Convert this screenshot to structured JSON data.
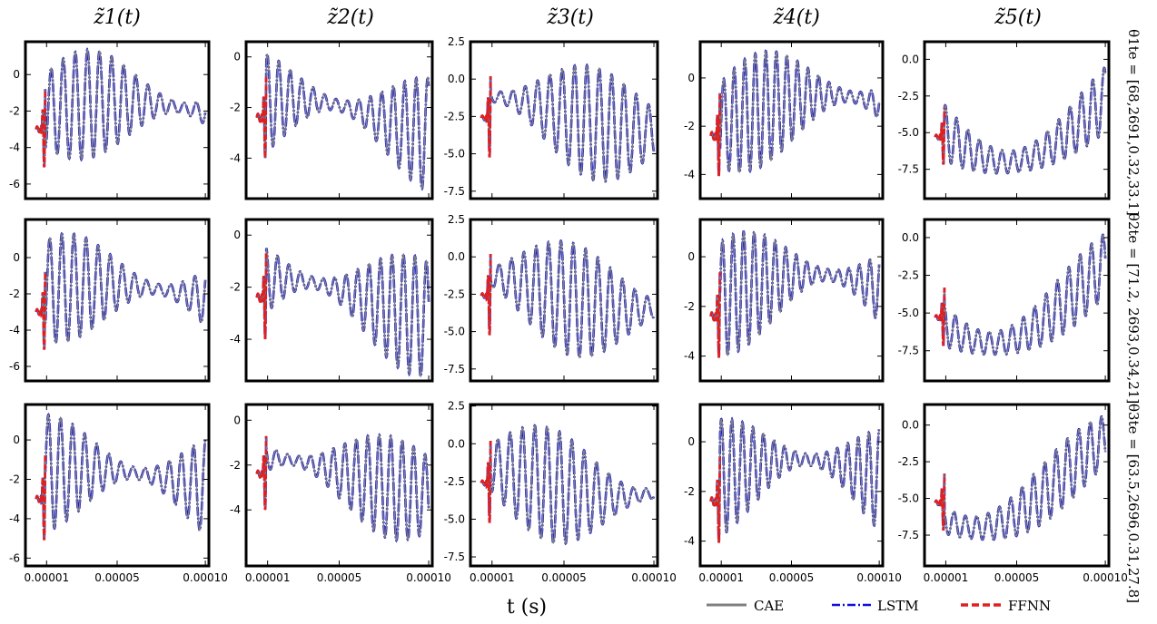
{
  "colors": {
    "cae": "#808080",
    "lstm": "#1010dd",
    "ffnn": "#e02020",
    "frame": "#000000"
  },
  "chart_data": {
    "type": "line",
    "xlabel": "t (s)",
    "column_titles": [
      "z̃1(t)",
      "z̃2(t)",
      "z̃3(t)",
      "z̃4(t)",
      "z̃5(t)"
    ],
    "row_labels": [
      "θ1te = [68,2691,0.32,33.1]",
      "θ2te = [71.2, 2693,0.34,21]",
      "θ3te = [63.5,2696,0.31,27.8]"
    ],
    "legend": [
      {
        "name": "CAE",
        "style": "solid",
        "color": "#808080"
      },
      {
        "name": "LSTM",
        "style": "dashdot",
        "color": "#1010dd"
      },
      {
        "name": "FFNN",
        "style": "dashed",
        "color": "#e02020"
      }
    ],
    "x_ticks": [
      "0.00001",
      "0.00005",
      "0.00010"
    ],
    "x_tick_values": [
      1e-05,
      5e-05,
      0.0001
    ],
    "xlim": [
      -2e-06,
      0.000102
    ],
    "ffnn_end": 9.3e-06,
    "columns": [
      {
        "y_ticks": [
          "0",
          "-2",
          "-4",
          "-6"
        ],
        "y_tick_values": [
          0,
          -2,
          -4,
          -6
        ],
        "ylims": [
          [
            -6.8,
            1.8
          ],
          [
            -6.8,
            2.1
          ],
          [
            -6.4,
            1.8
          ]
        ],
        "center": -2.1,
        "amp": 3.0,
        "freq": 14,
        "start": -3.0,
        "drift": 0.6
      },
      {
        "y_ticks": [
          "0",
          "-2",
          "-4"
        ],
        "y_tick_values": [
          0,
          -2,
          -4
        ],
        "ylims": [
          [
            -5.6,
            0.6
          ],
          [
            -5.6,
            0.6
          ],
          [
            -6.5,
            0.7
          ]
        ],
        "center": -2.5,
        "amp": 2.3,
        "freq": 15,
        "start": -2.4,
        "drift": 0.8
      },
      {
        "y_ticks": [
          "2.5",
          "0.0",
          "-2.5",
          "-5.0",
          "-7.5"
        ],
        "y_tick_values": [
          2.5,
          0,
          -2.5,
          -5,
          -7.5
        ],
        "ylims": [
          [
            -8.0,
            2.5
          ],
          [
            -8.3,
            2.5
          ],
          [
            -8.1,
            2.6
          ]
        ],
        "center": -2.3,
        "amp": 3.8,
        "freq": 14,
        "start": -2.6,
        "drift": 1.2
      },
      {
        "y_ticks": [
          "0",
          "-2",
          "-4"
        ],
        "y_tick_values": [
          0,
          -2,
          -4
        ],
        "ylims": [
          [
            -5.0,
            1.5
          ],
          [
            -5.0,
            1.5
          ],
          [
            -5.0,
            1.5
          ]
        ],
        "center": -1.6,
        "amp": 2.4,
        "freq": 16,
        "start": -2.4,
        "drift": -0.9
      },
      {
        "y_ticks": [
          "0.0",
          "-2.5",
          "-5.0",
          "-7.5"
        ],
        "y_tick_values": [
          0,
          -2.5,
          -5,
          -7.5
        ],
        "ylims": [
          [
            -9.5,
            1.2
          ],
          [
            -9.5,
            1.2
          ],
          [
            -9.6,
            1.4
          ]
        ],
        "center": -3.5,
        "amp": 2.7,
        "freq": 15,
        "start": -5.3,
        "drift": 3.5
      }
    ]
  }
}
